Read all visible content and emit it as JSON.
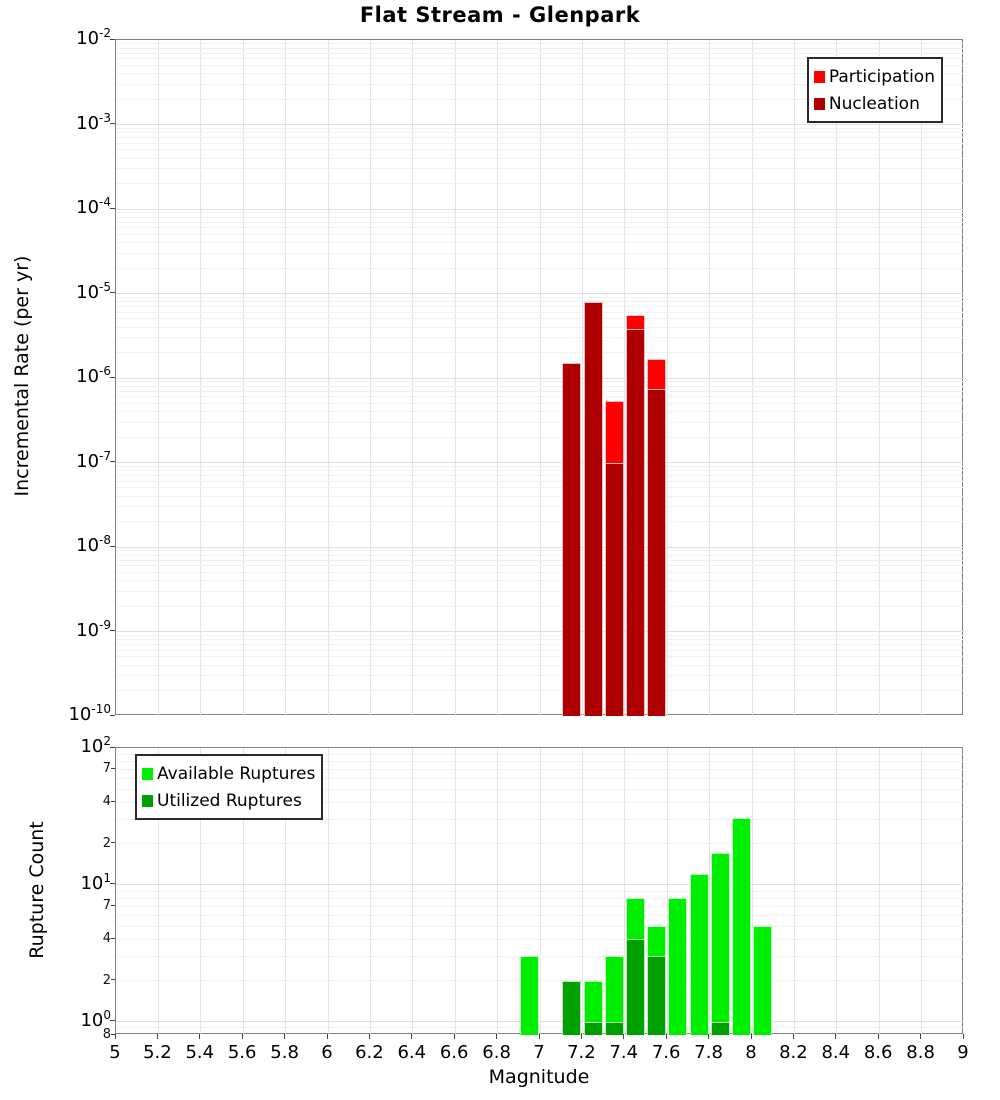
{
  "title": "Flat Stream - Glenpark",
  "xlabel": "Magnitude",
  "colors": {
    "participation": "#FF0000",
    "nucleation": "#AE0000",
    "available": "#00EE00",
    "utilized": "#00A000",
    "grid_major": "#E0E0E0",
    "grid_minor": "#F1F1F1",
    "grid_vertical": "#E4E4E4",
    "panel_border": "#7F7F7F",
    "legend_border": "#2A2A2A"
  },
  "x_axis": {
    "label": "Magnitude",
    "min": 5,
    "max": 9,
    "tick_values": [
      5,
      5.2,
      5.4,
      5.6,
      5.8,
      6,
      6.2,
      6.4,
      6.6,
      6.8,
      7,
      7.2,
      7.4,
      7.6,
      7.8,
      8,
      8.2,
      8.4,
      8.6,
      8.8,
      9
    ],
    "tick_labels": [
      "5",
      "5.2",
      "5.4",
      "5.6",
      "5.8",
      "6",
      "6.2",
      "6.4",
      "6.6",
      "6.8",
      "7",
      "7.2",
      "7.4",
      "7.6",
      "7.8",
      "8",
      "8.2",
      "8.4",
      "8.6",
      "8.8",
      "9"
    ]
  },
  "chart_data": [
    {
      "type": "bar",
      "panel": "top",
      "title": "Flat Stream - Glenpark",
      "ylabel": "Incremental Rate (per yr)",
      "yscale": "log",
      "ylim": [
        1e-10,
        0.01
      ],
      "xlim": [
        5,
        9
      ],
      "bin_width": 0.1,
      "grid": true,
      "legend_position": "top-right",
      "y_major_ticks": [
        {
          "base": "10",
          "exp": "-2",
          "value": 0.01
        },
        {
          "base": "10",
          "exp": "-3",
          "value": 0.001
        },
        {
          "base": "10",
          "exp": "-4",
          "value": 0.0001
        },
        {
          "base": "10",
          "exp": "-5",
          "value": 1e-05
        },
        {
          "base": "10",
          "exp": "-6",
          "value": 1e-06
        },
        {
          "base": "10",
          "exp": "-7",
          "value": 1e-07
        },
        {
          "base": "10",
          "exp": "-8",
          "value": 1e-08
        },
        {
          "base": "10",
          "exp": "-9",
          "value": 1e-09
        },
        {
          "base": "10",
          "exp": "-10",
          "value": 1e-10
        }
      ],
      "y_minor_labeled_ticks": [],
      "legend": [
        {
          "label": "Participation",
          "color_key": "participation"
        },
        {
          "label": "Nucleation",
          "color_key": "nucleation"
        }
      ],
      "series": [
        {
          "name": "Participation",
          "color_key": "participation",
          "points": [
            [
              7.15,
              1.5e-06
            ],
            [
              7.25,
              8e-06
            ],
            [
              7.35,
              5.3e-07
            ],
            [
              7.45,
              5.6e-06
            ],
            [
              7.55,
              1.7e-06
            ]
          ]
        },
        {
          "name": "Nucleation",
          "color_key": "nucleation",
          "points": [
            [
              7.15,
              1.5e-06
            ],
            [
              7.25,
              8e-06
            ],
            [
              7.35,
              1e-07
            ],
            [
              7.45,
              3.8e-06
            ],
            [
              7.55,
              7.4e-07
            ]
          ]
        }
      ]
    },
    {
      "type": "bar",
      "panel": "bottom",
      "ylabel": "Rupture Count",
      "yscale": "log",
      "ylim": [
        0.8,
        100
      ],
      "xlim": [
        5,
        9
      ],
      "bin_width": 0.1,
      "grid": true,
      "legend_position": "top-left",
      "y_major_ticks": [
        {
          "base": "10",
          "exp": "2",
          "value": 100
        },
        {
          "base": "10",
          "exp": "1",
          "value": 10
        },
        {
          "base": "10",
          "exp": "0",
          "value": 1
        }
      ],
      "y_minor_labeled_ticks": [
        {
          "label": "7",
          "value": 70
        },
        {
          "label": "4",
          "value": 40
        },
        {
          "label": "2",
          "value": 20
        },
        {
          "label": "7",
          "value": 7
        },
        {
          "label": "4",
          "value": 4
        },
        {
          "label": "2",
          "value": 2
        },
        {
          "label": "8",
          "value": 0.8
        }
      ],
      "legend": [
        {
          "label": "Available Ruptures",
          "color_key": "available"
        },
        {
          "label": "Utilized Ruptures",
          "color_key": "utilized"
        }
      ],
      "series": [
        {
          "name": "Available Ruptures",
          "color_key": "available",
          "points": [
            [
              6.95,
              3
            ],
            [
              7.15,
              2
            ],
            [
              7.25,
              2
            ],
            [
              7.35,
              3
            ],
            [
              7.45,
              8
            ],
            [
              7.55,
              5
            ],
            [
              7.65,
              8
            ],
            [
              7.75,
              12
            ],
            [
              7.85,
              17
            ],
            [
              7.95,
              31
            ],
            [
              8.05,
              5
            ]
          ]
        },
        {
          "name": "Utilized Ruptures",
          "color_key": "utilized",
          "points": [
            [
              7.15,
              2
            ],
            [
              7.25,
              1
            ],
            [
              7.35,
              1
            ],
            [
              7.45,
              4
            ],
            [
              7.55,
              3
            ],
            [
              7.85,
              1
            ]
          ]
        }
      ]
    }
  ]
}
